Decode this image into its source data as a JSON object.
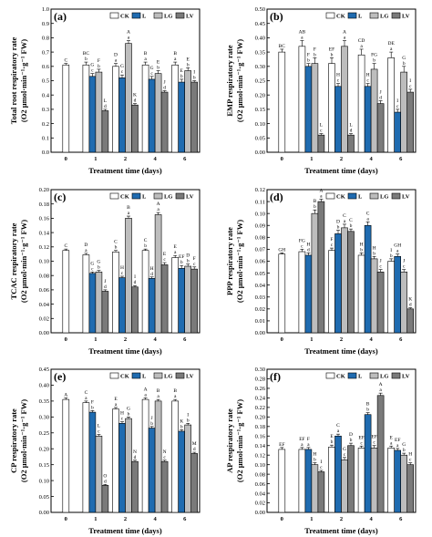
{
  "colors": {
    "CK": "#ffffff",
    "L": "#1f6bb0",
    "LG": "#bdbdbd",
    "LV": "#7a7a7a"
  },
  "legend": [
    "CK",
    "L",
    "LG",
    "LV"
  ],
  "chart_data": [
    {
      "type": "bar",
      "panel": "(a)",
      "ylabel": "Total root respiratory rate",
      "yunit": "(O2 μmol·min⁻¹·g⁻¹ FW)",
      "xlabel": "Treatment time (days)",
      "categories": [
        "0",
        "1",
        "2",
        "4",
        "6"
      ],
      "ylim": [
        0,
        1.0
      ],
      "yticks": [
        0,
        0.1,
        0.2,
        0.3,
        0.4,
        0.5,
        0.6,
        0.7,
        0.8,
        0.9,
        1.0
      ],
      "series": [
        {
          "name": "CK",
          "values": [
            0.61,
            0.61,
            0.6,
            0.61,
            0.61
          ],
          "err": [
            0.01,
            0.02,
            0.02,
            0.02,
            0.02
          ],
          "labels": [
            "C",
            "BC\nb",
            "D\na",
            "B\na",
            "B\na"
          ]
        },
        {
          "name": "L",
          "values": [
            null,
            0.53,
            0.52,
            0.51,
            0.49
          ],
          "err": [
            null,
            0.02,
            0.02,
            0.02,
            0.02
          ],
          "labels": [
            "",
            "G\nc",
            "G\nc",
            "G\nc",
            "E\nb"
          ]
        },
        {
          "name": "LG",
          "values": [
            null,
            0.56,
            0.76,
            0.55,
            0.57
          ],
          "err": [
            null,
            0.02,
            0.02,
            0.02,
            0.02
          ],
          "labels": [
            "",
            "F\nb",
            "A\na",
            "E\nb",
            "E\nb"
          ]
        },
        {
          "name": "LV",
          "values": [
            null,
            0.29,
            0.33,
            0.42,
            0.49
          ],
          "err": [
            null,
            0.01,
            0.01,
            0.01,
            0.01
          ],
          "labels": [
            "",
            "L\nd",
            "K\nd",
            "J\nd",
            "I\nb"
          ]
        }
      ]
    },
    {
      "type": "bar",
      "panel": "(b)",
      "ylabel": "EMP respiratory rate",
      "yunit": "(O2 μmol·min⁻¹·g⁻¹ FW)",
      "xlabel": "Treatment time (days)",
      "categories": [
        "0",
        "1",
        "2",
        "4",
        "6"
      ],
      "ylim": [
        0,
        0.5
      ],
      "yticks": [
        0,
        0.05,
        0.1,
        0.15,
        0.2,
        0.25,
        0.3,
        0.35,
        0.4,
        0.45,
        0.5
      ],
      "series": [
        {
          "name": "CK",
          "values": [
            0.35,
            0.37,
            0.31,
            0.34,
            0.33
          ],
          "err": [
            0.01,
            0.02,
            0.02,
            0.02,
            0.02
          ],
          "labels": [
            "BC",
            "AB\na",
            "EF\nb",
            "CD\na",
            "DE\na"
          ]
        },
        {
          "name": "L",
          "values": [
            null,
            0.3,
            0.23,
            0.23,
            0.14
          ],
          "err": [
            null,
            0.01,
            0.01,
            0.01,
            0.01
          ],
          "labels": [
            "",
            "F\nb",
            "H\nc",
            "H\nc",
            "I\nc"
          ]
        },
        {
          "name": "LG",
          "values": [
            null,
            0.31,
            0.37,
            0.29,
            0.28
          ],
          "err": [
            null,
            0.02,
            0.02,
            0.02,
            0.02
          ],
          "labels": [
            "",
            "F\nb",
            "A\na",
            "FG\nb",
            "G\nb"
          ]
        },
        {
          "name": "LV",
          "values": [
            null,
            0.06,
            0.06,
            0.17,
            0.21
          ],
          "err": [
            null,
            0.005,
            0.005,
            0.01,
            0.01
          ],
          "labels": [
            "",
            "L\nc",
            "L\nd",
            "J\nd",
            "I\nc"
          ]
        }
      ]
    },
    {
      "type": "bar",
      "panel": "(c)",
      "ylabel": "TCAC respiratory rate",
      "yunit": "(O2 μmol·min⁻¹·g⁻¹ FW)",
      "xlabel": "Treatment time (days)",
      "categories": [
        "0",
        "1",
        "2",
        "4",
        "6"
      ],
      "ylim": [
        0,
        0.2
      ],
      "yticks": [
        0,
        0.02,
        0.04,
        0.06,
        0.08,
        0.1,
        0.12,
        0.14,
        0.16,
        0.18,
        0.2
      ],
      "series": [
        {
          "name": "CK",
          "values": [
            0.115,
            0.109,
            0.113,
            0.115,
            0.105
          ],
          "err": [
            0.002,
            0.002,
            0.002,
            0.002,
            0.003
          ],
          "labels": [
            "C",
            "D\na",
            "C\nb",
            "C\nb",
            "E\na"
          ]
        },
        {
          "name": "L",
          "values": [
            null,
            0.083,
            0.077,
            0.076,
            0.09
          ],
          "err": [
            null,
            0.002,
            0.002,
            0.002,
            0.004
          ],
          "labels": [
            "",
            "G\nc",
            "H\nc",
            "H\nd",
            "EF\nb"
          ]
        },
        {
          "name": "LG",
          "values": [
            null,
            0.085,
            0.16,
            0.165,
            0.093
          ],
          "err": [
            null,
            0.002,
            0.003,
            0.003,
            0.003
          ],
          "labels": [
            "",
            "G\nb",
            "B\na",
            "A\na",
            "D\nb"
          ]
        },
        {
          "name": "LV",
          "values": [
            null,
            0.058,
            0.064,
            0.095,
            0.089
          ],
          "err": [
            null,
            0.002,
            0.002,
            0.003,
            0.003
          ],
          "labels": [
            "",
            "J\nd",
            "I\nd",
            "E\nc",
            "F\nc"
          ]
        }
      ]
    },
    {
      "type": "bar",
      "panel": "(d)",
      "ylabel": "PPP respiratory rate",
      "yunit": "(O2 μmol·min⁻¹·g⁻¹ FW)",
      "xlabel": "Treatment time (days)",
      "categories": [
        "0",
        "1",
        "2",
        "4",
        "6"
      ],
      "ylim": [
        0,
        0.12
      ],
      "yticks": [
        0,
        0.01,
        0.02,
        0.03,
        0.04,
        0.05,
        0.06,
        0.07,
        0.08,
        0.09,
        0.1,
        0.11,
        0.12
      ],
      "series": [
        {
          "name": "CK",
          "values": [
            0.066,
            0.068,
            0.069,
            0.065,
            0.06
          ],
          "err": [
            0.001,
            0.002,
            0.002,
            0.002,
            0.002
          ],
          "labels": [
            "GH",
            "FG\nc",
            "F\nc",
            "H\nb",
            "I\nb"
          ]
        },
        {
          "name": "L",
          "values": [
            null,
            0.065,
            0.083,
            0.09,
            0.064
          ],
          "err": [
            null,
            0.002,
            0.003,
            0.003,
            0.002
          ],
          "labels": [
            "",
            "H\nd",
            "D\nb",
            "C\na",
            "GH\na"
          ]
        },
        {
          "name": "LG",
          "values": [
            null,
            0.1,
            0.088,
            0.062,
            0.051
          ],
          "err": [
            null,
            0.003,
            0.003,
            0.002,
            0.002
          ],
          "labels": [
            "",
            "B\nb",
            "C\na",
            "H\nb",
            "J\nc"
          ]
        },
        {
          "name": "LV",
          "values": [
            null,
            0.11,
            0.085,
            0.051,
            0.02
          ],
          "err": [
            null,
            0.002,
            0.002,
            0.002,
            0.001
          ],
          "labels": [
            "",
            "A\na",
            "C\nb",
            "J\nc",
            "K\nd"
          ]
        }
      ]
    },
    {
      "type": "bar",
      "panel": "(e)",
      "ylabel": "CP respiratory rate",
      "yunit": "(O2 μmol·min⁻¹·g⁻¹ FW)",
      "xlabel": "Treatment time (days)",
      "categories": [
        "0",
        "1",
        "2",
        "4",
        "6"
      ],
      "ylim": [
        0,
        0.45
      ],
      "yticks": [
        0,
        0.05,
        0.1,
        0.15,
        0.2,
        0.25,
        0.3,
        0.35,
        0.4,
        0.45
      ],
      "series": [
        {
          "name": "CK",
          "values": [
            0.355,
            0.345,
            0.325,
            0.355,
            0.35
          ],
          "err": [
            0.005,
            0.005,
            0.005,
            0.005,
            0.005
          ],
          "labels": [
            "A",
            "C\na",
            "E\na",
            "A\na",
            "B\na"
          ]
        },
        {
          "name": "L",
          "values": [
            null,
            0.315,
            0.28,
            0.265,
            0.255
          ],
          "err": [
            null,
            0.005,
            0.005,
            0.005,
            0.005
          ],
          "labels": [
            "",
            "F\nb",
            "H\nc",
            "J\nb",
            "K\nb"
          ]
        },
        {
          "name": "LG",
          "values": [
            null,
            0.24,
            0.295,
            0.35,
            0.275
          ],
          "err": [
            null,
            0.005,
            0.005,
            0.005,
            0.005
          ],
          "labels": [
            "",
            "L\nc",
            "G\nb",
            "B\na",
            "I\nb"
          ]
        },
        {
          "name": "LV",
          "values": [
            null,
            0.085,
            0.16,
            0.16,
            0.185
          ],
          "err": [
            null,
            0.003,
            0.004,
            0.004,
            0.004
          ],
          "labels": [
            "",
            "O\nd",
            "N\nd",
            "N\nc",
            "M\nd"
          ]
        }
      ]
    },
    {
      "type": "bar",
      "panel": "(f)",
      "ylabel": "AP respiratory rate",
      "yunit": "(O2 μmol·min⁻¹·g⁻¹ FW)",
      "xlabel": "Treatment time (days)",
      "categories": [
        "0",
        "1",
        "2",
        "4",
        "6"
      ],
      "ylim": [
        0,
        0.3
      ],
      "yticks": [
        0,
        0.02,
        0.04,
        0.06,
        0.08,
        0.1,
        0.12,
        0.14,
        0.16,
        0.18,
        0.2,
        0.22,
        0.24,
        0.26,
        0.28,
        0.3
      ],
      "series": [
        {
          "name": "CK",
          "values": [
            0.132,
            0.132,
            0.137,
            0.135,
            0.135
          ],
          "err": [
            0.004,
            0.004,
            0.004,
            0.004,
            0.004
          ],
          "labels": [
            "EF",
            "EF\na",
            "E\nb",
            "EF\nc",
            "E\na"
          ]
        },
        {
          "name": "L",
          "values": [
            null,
            0.132,
            0.16,
            0.205,
            0.13
          ],
          "err": [
            null,
            0.004,
            0.004,
            0.004,
            0.004
          ],
          "labels": [
            "",
            "F\na",
            "C\na",
            "B\nb",
            "EF\na"
          ]
        },
        {
          "name": "LG",
          "values": [
            null,
            0.1,
            0.11,
            0.135,
            0.12
          ],
          "err": [
            null,
            0.004,
            0.005,
            0.005,
            0.004
          ],
          "labels": [
            "",
            "H\nb",
            "G\nc",
            "EF\nc",
            "G\nb"
          ]
        },
        {
          "name": "LV",
          "values": [
            null,
            0.085,
            0.14,
            0.245,
            0.1
          ],
          "err": [
            null,
            0.003,
            0.005,
            0.005,
            0.004
          ],
          "labels": [
            "",
            "I\nc",
            "D\nb",
            "A\na",
            "H\nc"
          ]
        }
      ]
    }
  ]
}
